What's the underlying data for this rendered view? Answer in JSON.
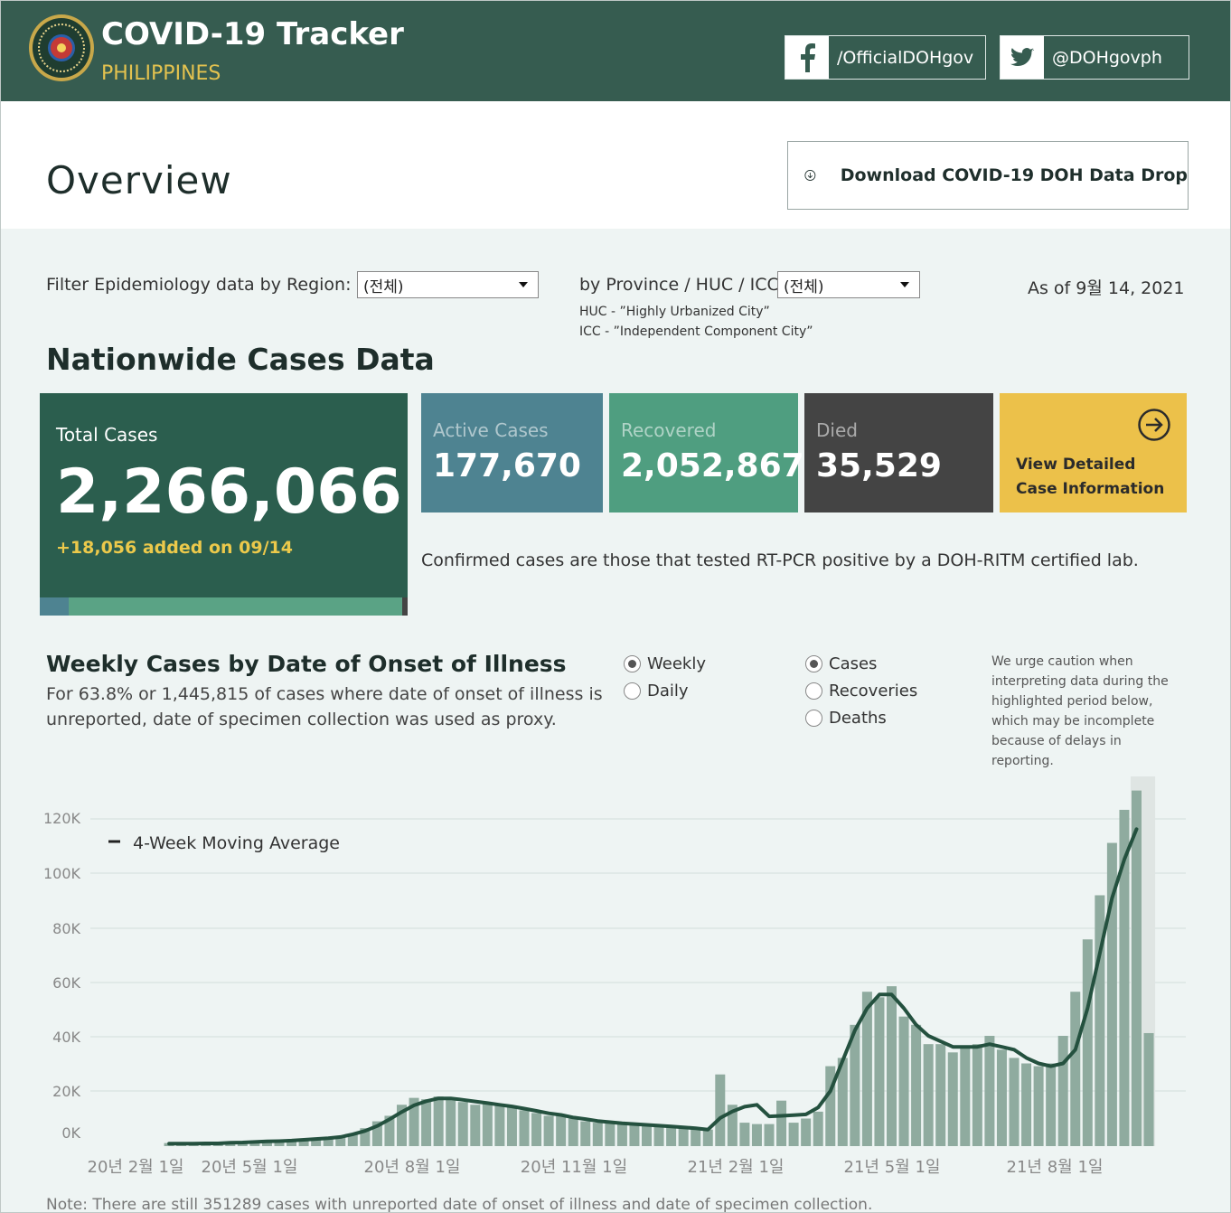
{
  "header": {
    "title": "COVID-19 Tracker",
    "subtitle": "PHILIPPINES",
    "facebook_label": "/OfficialDOHgov",
    "twitter_label": "@DOHgovph"
  },
  "page": {
    "title": "Overview",
    "download_label": "Download COVID-19 DOH Data Drop"
  },
  "filters": {
    "region_label": "Filter Epidemiology data by Region:",
    "region_value": "(전체)",
    "province_label": "by Province / HUC / ICC:",
    "province_value": "(전체)",
    "huc_note": "HUC - ”Highly Urbanized City”",
    "icc_note": "ICC - ”Independent Component City”",
    "as_of": "As of 9월 14, 2021"
  },
  "nationwide": {
    "heading": "Nationwide Cases Data",
    "total_label": "Total Cases",
    "total_value": "2,266,066",
    "added": "+18,056 added on 09/14",
    "active_label": "Active Cases",
    "active_value": "177,670",
    "recovered_label": "Recovered",
    "recovered_value": "2,052,867",
    "died_label": "Died",
    "died_value": "35,529",
    "detail_label": "View Detailed Case Information",
    "confirmed_note": "Confirmed cases are those that tested RT-PCR positive by a DOH-RITM certified lab.",
    "colors": {
      "total": "#2b5e4e",
      "active": "#4e8391",
      "recovered": "#4f9e80",
      "died": "#444444",
      "detail": "#ecc14a"
    }
  },
  "weekly": {
    "heading": "Weekly Cases by Date of Onset of Illness",
    "subtext": "For 63.8% or 1,445,815 of cases where date of onset of illness is unreported, date of specimen collection was used as proxy.",
    "period_options": [
      {
        "label": "Weekly",
        "selected": true
      },
      {
        "label": "Daily",
        "selected": false
      }
    ],
    "metric_options": [
      {
        "label": "Cases",
        "selected": true
      },
      {
        "label": "Recoveries",
        "selected": false
      },
      {
        "label": "Deaths",
        "selected": false
      }
    ],
    "caution": "We urge caution when interpreting data during the highlighted period below, which may be incomplete because of delays in reporting."
  },
  "chart_data": {
    "type": "bar",
    "legend": "4-Week Moving Average",
    "ylim": [
      0,
      130000
    ],
    "yticks": [
      "0K",
      "20K",
      "40K",
      "60K",
      "80K",
      "100K",
      "120K"
    ],
    "xticks": [
      "20년 2월 1일",
      "20년 5월 1일",
      "20년 8월 1일",
      "20년 11월 1일",
      "21년 2월 1일",
      "21년 5월 1일",
      "21년 8월 1일"
    ],
    "bar_color": "#8fab9f",
    "line_color": "#24513f",
    "values": [
      0,
      1100,
      700,
      900,
      1100,
      1200,
      1400,
      1500,
      1600,
      1800,
      2000,
      2200,
      2500,
      2800,
      3000,
      3500,
      4300,
      6500,
      9000,
      11000,
      15000,
      17500,
      17000,
      18000,
      17000,
      16000,
      15000,
      15500,
      15000,
      14000,
      13000,
      12000,
      11000,
      11000,
      10000,
      9000,
      8500,
      8500,
      8000,
      8000,
      7500,
      7000,
      7000,
      6500,
      6500,
      6000,
      26000,
      15000,
      8500,
      8000,
      8000,
      16500,
      8500,
      10000,
      12500,
      29000,
      32000,
      44000,
      56000,
      54000,
      58000,
      47000,
      44000,
      37000,
      37000,
      34000,
      36000,
      37000,
      40000,
      35000,
      32000,
      30000,
      29000,
      30000,
      40000,
      56000,
      75000,
      91000,
      110000,
      122000,
      129000,
      41000
    ],
    "moving_average": [
      null,
      900,
      900,
      900,
      1000,
      1000,
      1200,
      1300,
      1500,
      1700,
      1800,
      2000,
      2300,
      2600,
      2900,
      3300,
      4300,
      5500,
      7300,
      9700,
      12400,
      14800,
      16300,
      17300,
      17300,
      16800,
      16200,
      15600,
      15000,
      14400,
      13600,
      12800,
      11900,
      11300,
      10400,
      9800,
      9100,
      8700,
      8300,
      8000,
      7700,
      7400,
      7100,
      6800,
      6500,
      6000,
      10200,
      12600,
      14300,
      15000,
      10800,
      11000,
      11200,
      11500,
      14000,
      20000,
      31000,
      42000,
      50000,
      55000,
      55000,
      50000,
      44000,
      40000,
      38000,
      36000,
      36000,
      36000,
      37000,
      36000,
      35000,
      32000,
      30000,
      29000,
      30000,
      35000,
      50000,
      70000,
      90000,
      104000,
      115000,
      null
    ],
    "highlight_range_index": [
      80,
      81
    ]
  },
  "footer": {
    "note": "Note: There are still 351289 cases with unreported date of onset of illness and date of specimen collection."
  }
}
